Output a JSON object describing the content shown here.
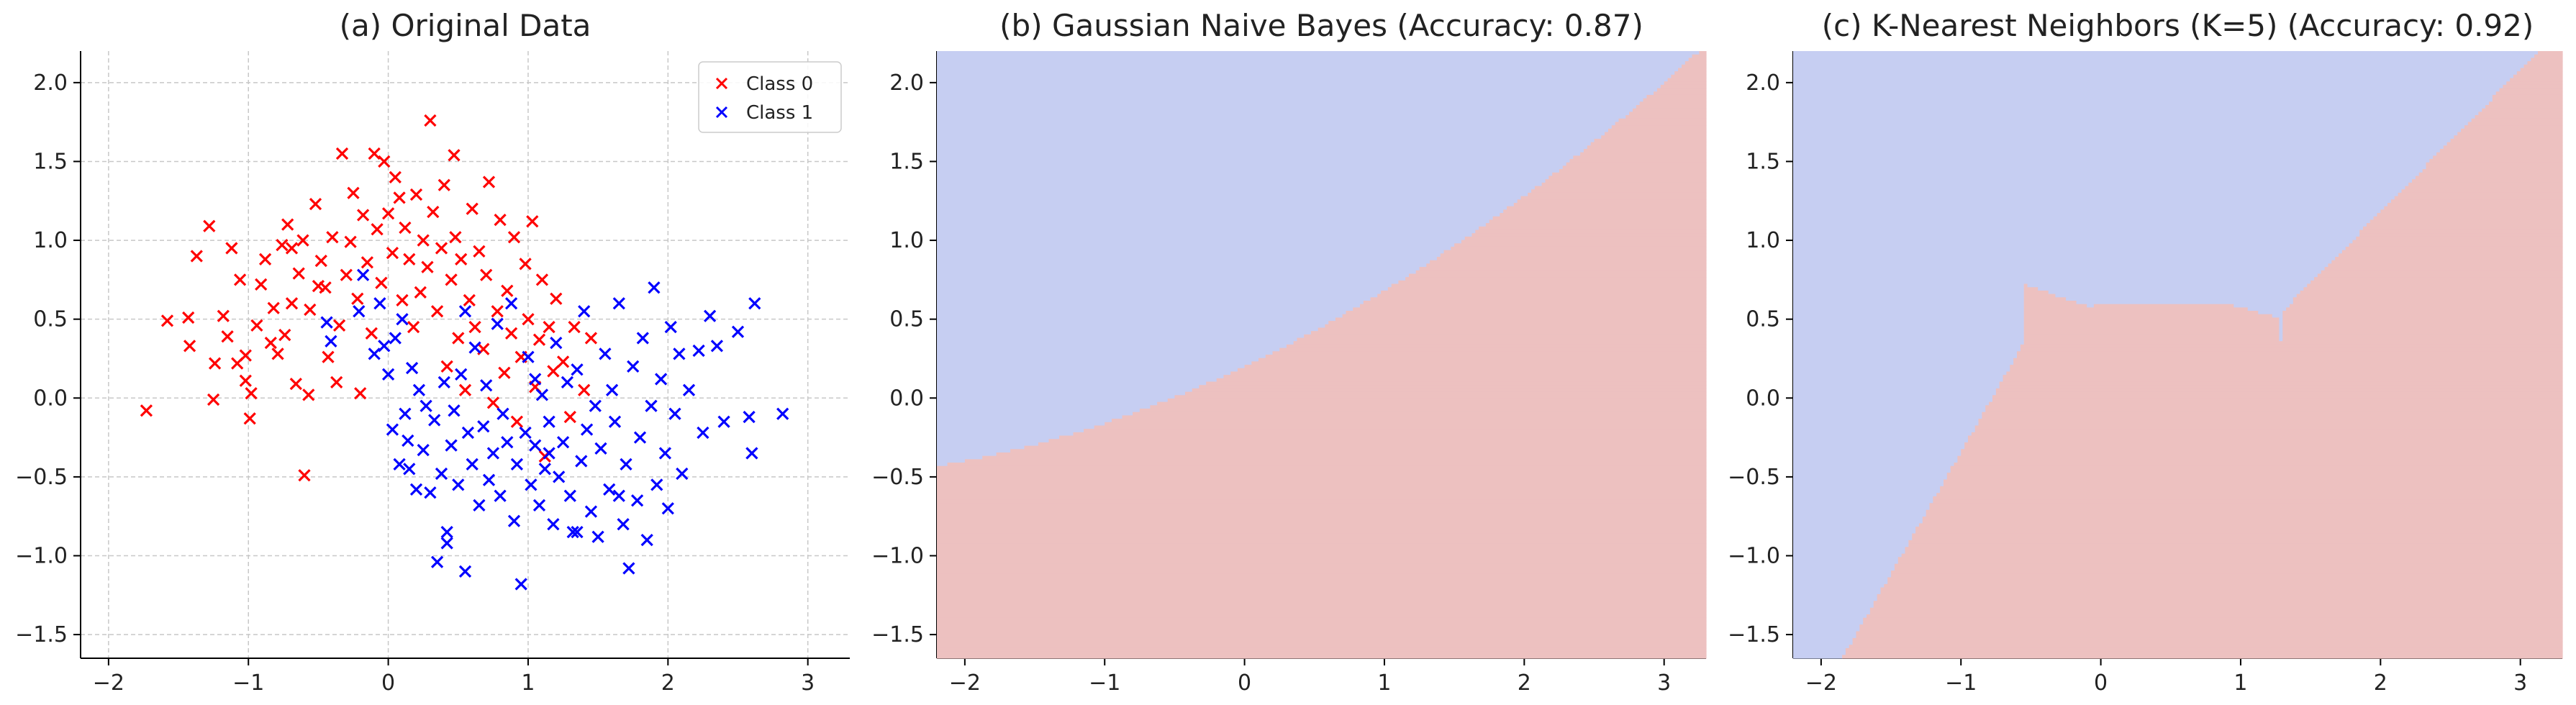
{
  "colors": {
    "class0": "#ff0000",
    "class1": "#0000ff",
    "region_class0": "#edc1c0",
    "region_class1": "#c6cef2",
    "boundary": "#f2e4e2",
    "grid": "#c8c8c8",
    "axis": "#000000"
  },
  "chart_data": [
    {
      "type": "scatter",
      "title": "(a) Original Data",
      "xlim": [
        -2.2,
        3.3
      ],
      "ylim": [
        -1.65,
        2.2
      ],
      "xticks": [
        -2,
        -1,
        0,
        1,
        2,
        3
      ],
      "xtick_labels": [
        "−2",
        "−1",
        "0",
        "1",
        "2",
        "3"
      ],
      "yticks": [
        -1.5,
        -1.0,
        -0.5,
        0.0,
        0.5,
        1.0,
        1.5,
        2.0
      ],
      "ytick_labels": [
        "−1.5",
        "−1.0",
        "−0.5",
        "0.0",
        "0.5",
        "1.0",
        "1.5",
        "2.0"
      ],
      "grid": true,
      "legend": {
        "position": "top-right",
        "entries": [
          "Class 0",
          "Class 1"
        ]
      },
      "decision_boundary": "none",
      "marker": "x",
      "series": [
        {
          "name": "Class 0",
          "color": "#ff0000",
          "points": [
            [
              -1.73,
              -0.08
            ],
            [
              -1.58,
              0.49
            ],
            [
              -1.43,
              0.51
            ],
            [
              -1.42,
              0.33
            ],
            [
              -1.37,
              0.9
            ],
            [
              -1.28,
              1.09
            ],
            [
              -1.25,
              -0.01
            ],
            [
              -1.24,
              0.22
            ],
            [
              -1.18,
              0.52
            ],
            [
              -1.15,
              0.39
            ],
            [
              -1.12,
              0.95
            ],
            [
              -1.08,
              0.22
            ],
            [
              -1.06,
              0.75
            ],
            [
              -1.02,
              0.11
            ],
            [
              -1.02,
              0.27
            ],
            [
              -0.99,
              -0.13
            ],
            [
              -0.98,
              0.03
            ],
            [
              -0.94,
              0.46
            ],
            [
              -0.91,
              0.72
            ],
            [
              -0.88,
              0.88
            ],
            [
              -0.84,
              0.35
            ],
            [
              -0.82,
              0.57
            ],
            [
              -0.79,
              0.28
            ],
            [
              -0.76,
              0.97
            ],
            [
              -0.74,
              0.4
            ],
            [
              -0.72,
              1.1
            ],
            [
              -0.69,
              0.6
            ],
            [
              -0.66,
              0.09
            ],
            [
              -0.64,
              0.79
            ],
            [
              -0.61,
              1.0
            ],
            [
              -0.6,
              -0.49
            ],
            [
              -0.57,
              0.02
            ],
            [
              -0.56,
              0.56
            ],
            [
              -0.52,
              1.23
            ],
            [
              -0.48,
              0.87
            ],
            [
              -0.45,
              0.7
            ],
            [
              -0.43,
              0.26
            ],
            [
              -0.4,
              1.02
            ],
            [
              -0.37,
              0.1
            ],
            [
              -0.35,
              0.46
            ],
            [
              -0.33,
              1.55
            ],
            [
              -0.3,
              0.78
            ],
            [
              -0.27,
              0.99
            ],
            [
              -0.25,
              1.3
            ],
            [
              -0.22,
              0.63
            ],
            [
              -0.2,
              0.03
            ],
            [
              -0.18,
              1.16
            ],
            [
              -0.15,
              0.86
            ],
            [
              -0.12,
              0.41
            ],
            [
              -0.1,
              1.55
            ],
            [
              -0.08,
              1.07
            ],
            [
              -0.05,
              0.73
            ],
            [
              -0.03,
              1.5
            ],
            [
              0.0,
              1.17
            ],
            [
              0.03,
              0.92
            ],
            [
              0.05,
              1.4
            ],
            [
              0.08,
              1.27
            ],
            [
              0.1,
              0.62
            ],
            [
              0.12,
              1.08
            ],
            [
              0.15,
              0.88
            ],
            [
              0.18,
              0.45
            ],
            [
              0.2,
              1.29
            ],
            [
              0.23,
              0.67
            ],
            [
              0.25,
              1.0
            ],
            [
              0.28,
              0.83
            ],
            [
              0.3,
              1.76
            ],
            [
              0.32,
              1.18
            ],
            [
              0.35,
              0.55
            ],
            [
              0.38,
              0.95
            ],
            [
              0.4,
              1.35
            ],
            [
              0.42,
              0.2
            ],
            [
              0.45,
              0.75
            ],
            [
              0.48,
              1.02
            ],
            [
              0.5,
              0.38
            ],
            [
              0.52,
              0.88
            ],
            [
              0.55,
              0.05
            ],
            [
              0.58,
              0.62
            ],
            [
              0.6,
              1.2
            ],
            [
              0.62,
              0.45
            ],
            [
              0.65,
              0.93
            ],
            [
              0.68,
              0.31
            ],
            [
              0.7,
              0.78
            ],
            [
              0.72,
              1.37
            ],
            [
              0.75,
              -0.03
            ],
            [
              0.78,
              0.55
            ],
            [
              0.8,
              1.13
            ],
            [
              0.83,
              0.16
            ],
            [
              0.85,
              0.68
            ],
            [
              0.88,
              0.41
            ],
            [
              0.9,
              1.02
            ],
            [
              0.92,
              -0.15
            ],
            [
              0.95,
              0.26
            ],
            [
              0.98,
              0.85
            ],
            [
              1.0,
              0.5
            ],
            [
              1.03,
              1.12
            ],
            [
              1.05,
              0.07
            ],
            [
              1.08,
              0.37
            ],
            [
              1.1,
              0.75
            ],
            [
              1.12,
              -0.37
            ],
            [
              1.15,
              0.45
            ],
            [
              1.18,
              0.17
            ],
            [
              1.2,
              0.63
            ],
            [
              1.25,
              0.23
            ],
            [
              1.3,
              -0.12
            ],
            [
              1.33,
              0.45
            ],
            [
              1.4,
              0.05
            ],
            [
              1.45,
              0.38
            ],
            [
              -0.69,
              0.95
            ],
            [
              -0.5,
              0.71
            ],
            [
              0.47,
              1.54
            ]
          ]
        },
        {
          "name": "Class 1",
          "color": "#0000ff",
          "points": [
            [
              -0.44,
              0.48
            ],
            [
              -0.41,
              0.36
            ],
            [
              -0.21,
              0.55
            ],
            [
              -0.18,
              0.78
            ],
            [
              -0.1,
              0.28
            ],
            [
              -0.06,
              0.6
            ],
            [
              -0.03,
              0.33
            ],
            [
              0.0,
              0.15
            ],
            [
              0.03,
              -0.2
            ],
            [
              0.05,
              0.38
            ],
            [
              0.08,
              -0.42
            ],
            [
              0.1,
              0.5
            ],
            [
              0.12,
              -0.1
            ],
            [
              0.14,
              -0.27
            ],
            [
              0.17,
              0.19
            ],
            [
              0.2,
              -0.58
            ],
            [
              0.22,
              0.05
            ],
            [
              0.25,
              -0.33
            ],
            [
              0.27,
              -0.05
            ],
            [
              0.3,
              -0.6
            ],
            [
              0.33,
              -0.14
            ],
            [
              0.35,
              -1.04
            ],
            [
              0.38,
              -0.48
            ],
            [
              0.4,
              0.1
            ],
            [
              0.42,
              -0.92
            ],
            [
              0.45,
              -0.3
            ],
            [
              0.47,
              -0.08
            ],
            [
              0.5,
              -0.55
            ],
            [
              0.52,
              0.15
            ],
            [
              0.55,
              -1.1
            ],
            [
              0.57,
              -0.22
            ],
            [
              0.6,
              -0.42
            ],
            [
              0.62,
              0.32
            ],
            [
              0.65,
              -0.68
            ],
            [
              0.68,
              -0.18
            ],
            [
              0.7,
              0.08
            ],
            [
              0.72,
              -0.52
            ],
            [
              0.75,
              -0.35
            ],
            [
              0.78,
              0.47
            ],
            [
              0.8,
              -0.62
            ],
            [
              0.82,
              -0.1
            ],
            [
              0.85,
              -0.28
            ],
            [
              0.88,
              0.6
            ],
            [
              0.9,
              -0.78
            ],
            [
              0.92,
              -0.42
            ],
            [
              0.95,
              -1.18
            ],
            [
              0.98,
              -0.22
            ],
            [
              1.0,
              0.26
            ],
            [
              1.02,
              -0.55
            ],
            [
              1.05,
              -0.3
            ],
            [
              1.08,
              -0.68
            ],
            [
              1.1,
              0.02
            ],
            [
              1.12,
              -0.45
            ],
            [
              1.15,
              -0.15
            ],
            [
              1.18,
              -0.8
            ],
            [
              1.2,
              0.35
            ],
            [
              1.22,
              -0.5
            ],
            [
              1.25,
              -0.28
            ],
            [
              1.28,
              0.1
            ],
            [
              1.3,
              -0.62
            ],
            [
              1.32,
              -0.85
            ],
            [
              1.35,
              0.18
            ],
            [
              1.38,
              -0.4
            ],
            [
              1.4,
              0.55
            ],
            [
              1.42,
              -0.2
            ],
            [
              1.45,
              -0.72
            ],
            [
              1.48,
              -0.05
            ],
            [
              1.5,
              -0.88
            ],
            [
              1.52,
              -0.32
            ],
            [
              1.55,
              0.28
            ],
            [
              1.58,
              -0.58
            ],
            [
              1.6,
              0.05
            ],
            [
              1.62,
              -0.15
            ],
            [
              1.65,
              0.6
            ],
            [
              1.68,
              -0.8
            ],
            [
              1.7,
              -0.42
            ],
            [
              1.72,
              -1.08
            ],
            [
              1.75,
              0.2
            ],
            [
              1.78,
              -0.65
            ],
            [
              1.8,
              -0.25
            ],
            [
              1.82,
              0.38
            ],
            [
              1.85,
              -0.9
            ],
            [
              1.88,
              -0.05
            ],
            [
              1.9,
              0.7
            ],
            [
              1.92,
              -0.55
            ],
            [
              1.95,
              0.12
            ],
            [
              1.98,
              -0.35
            ],
            [
              2.0,
              -0.7
            ],
            [
              2.02,
              0.45
            ],
            [
              2.05,
              -0.1
            ],
            [
              2.08,
              0.28
            ],
            [
              2.1,
              -0.48
            ],
            [
              2.15,
              0.05
            ],
            [
              2.22,
              0.3
            ],
            [
              2.25,
              -0.22
            ],
            [
              2.3,
              0.52
            ],
            [
              2.35,
              0.33
            ],
            [
              2.4,
              -0.15
            ],
            [
              2.5,
              0.42
            ],
            [
              2.58,
              -0.12
            ],
            [
              2.6,
              -0.35
            ],
            [
              2.62,
              0.6
            ],
            [
              2.82,
              -0.1
            ],
            [
              1.35,
              -0.85
            ],
            [
              1.65,
              -0.62
            ],
            [
              0.15,
              -0.45
            ],
            [
              0.55,
              0.55
            ],
            [
              1.15,
              -0.35
            ],
            [
              0.42,
              -0.85
            ],
            [
              1.05,
              0.12
            ]
          ]
        }
      ]
    },
    {
      "type": "scatter",
      "title": "(b) Gaussian Naive Bayes (Accuracy: 0.87)",
      "xlim": [
        -2.2,
        3.3
      ],
      "ylim": [
        -1.65,
        2.2
      ],
      "xticks": [
        -2,
        -1,
        0,
        1,
        2,
        3
      ],
      "xtick_labels": [
        "−2",
        "−1",
        "0",
        "1",
        "2",
        "3"
      ],
      "yticks": [
        -1.5,
        -1.0,
        -0.5,
        0.0,
        0.5,
        1.0,
        1.5,
        2.0
      ],
      "ytick_labels": [
        "−1.5",
        "−1.0",
        "−0.5",
        "0.0",
        "0.5",
        "1.0",
        "1.5",
        "2.0"
      ],
      "grid": true,
      "legend": null,
      "decision_boundary": "linear-ish",
      "marker": "x",
      "same_points_as": 0
    },
    {
      "type": "scatter",
      "title": "(c) K-Nearest Neighbors (K=5) (Accuracy: 0.92)",
      "xlim": [
        -2.2,
        3.3
      ],
      "ylim": [
        -1.65,
        2.2
      ],
      "xticks": [
        -2,
        -1,
        0,
        1,
        2,
        3
      ],
      "xtick_labels": [
        "−2",
        "−1",
        "0",
        "1",
        "2",
        "3"
      ],
      "yticks": [
        -1.5,
        -1.0,
        -0.5,
        0.0,
        0.5,
        1.0,
        1.5,
        2.0
      ],
      "ytick_labels": [
        "−1.5",
        "−1.0",
        "−0.5",
        "0.0",
        "0.5",
        "1.0",
        "1.5",
        "2.0"
      ],
      "grid": true,
      "legend": null,
      "decision_boundary": "nonlinear",
      "marker": "x",
      "same_points_as": 0
    }
  ]
}
